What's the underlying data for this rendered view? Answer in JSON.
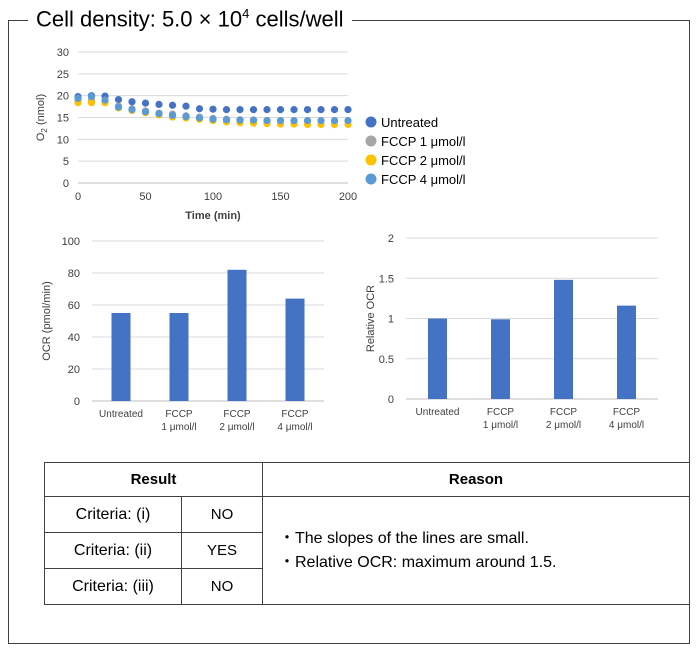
{
  "header": {
    "title_prefix": "Cell density: 5.0",
    "title_times": "×",
    "title_base": "10",
    "title_exp": "4",
    "title_suffix": "cells/well"
  },
  "chart_data": [
    {
      "type": "scatter",
      "xlabel": "Time  (min)",
      "ylabel_main": "O",
      "ylabel_sub": "2",
      "ylabel_unit": " (nmol)",
      "xlim": [
        0,
        200
      ],
      "ylim": [
        0,
        30
      ],
      "xticks": [
        "0",
        "50",
        "100",
        "150",
        "200"
      ],
      "yticks": [
        "0",
        "5",
        "10",
        "15",
        "20",
        "25",
        "30"
      ],
      "x": [
        0,
        10,
        20,
        30,
        40,
        50,
        60,
        70,
        80,
        90,
        100,
        110,
        120,
        130,
        140,
        150,
        160,
        170,
        180,
        190,
        200
      ],
      "series": [
        {
          "name": "Untreated",
          "color": "#4472C4",
          "values": [
            19.8,
            20.0,
            19.9,
            19.1,
            18.6,
            18.3,
            18.0,
            17.8,
            17.6,
            17.0,
            16.9,
            16.8,
            16.8,
            16.8,
            16.8,
            16.8,
            16.8,
            16.8,
            16.8,
            16.8,
            16.8
          ]
        },
        {
          "name": "FCCP 1 μmol/l",
          "color": "#A5A5A5",
          "values": [
            18.8,
            19.0,
            18.8,
            17.6,
            17.0,
            16.5,
            16.0,
            15.8,
            15.4,
            15.1,
            14.8,
            14.6,
            14.5,
            14.4,
            14.3,
            14.3,
            14.2,
            14.2,
            14.2,
            14.2,
            14.2
          ]
        },
        {
          "name": "FCCP 2 μmol/l",
          "color": "#FFC000",
          "values": [
            18.4,
            18.4,
            18.4,
            17.2,
            16.6,
            16.1,
            15.6,
            15.1,
            14.9,
            14.6,
            14.3,
            14.0,
            13.8,
            13.7,
            13.6,
            13.5,
            13.5,
            13.4,
            13.4,
            13.4,
            13.4
          ]
        },
        {
          "name": "FCCP 4 μmol/l",
          "color": "#5B9BD5",
          "values": [
            19.4,
            19.8,
            19.0,
            17.4,
            16.8,
            16.3,
            15.9,
            15.5,
            15.2,
            14.9,
            14.6,
            14.5,
            14.4,
            14.4,
            14.3,
            14.3,
            14.3,
            14.3,
            14.3,
            14.3,
            14.3
          ]
        }
      ]
    },
    {
      "type": "bar",
      "ylabel": "OCR (pmol/min)",
      "ylim": [
        0,
        100
      ],
      "yticks": [
        "0",
        "20",
        "40",
        "60",
        "80",
        "100"
      ],
      "categories": [
        [
          "Untreated"
        ],
        [
          "FCCP",
          "1 μmol/l"
        ],
        [
          "FCCP",
          "2 μmol/l"
        ],
        [
          "FCCP",
          "4 μmol/l"
        ]
      ],
      "values": [
        55,
        55,
        82,
        64
      ],
      "color": "#4472C4"
    },
    {
      "type": "bar",
      "ylabel": "Relative OCR",
      "ylim": [
        0,
        2
      ],
      "yticks": [
        "0",
        "0.5",
        "1",
        "1.5",
        "2"
      ],
      "categories": [
        [
          "Untreated"
        ],
        [
          "FCCP",
          "1 μmol/l"
        ],
        [
          "FCCP",
          "2 μmol/l"
        ],
        [
          "FCCP",
          "4 μmol/l"
        ]
      ],
      "values": [
        1.0,
        0.99,
        1.48,
        1.16
      ],
      "color": "#4472C4"
    }
  ],
  "table": {
    "result_header": "Result",
    "reason_header": "Reason",
    "rows": [
      {
        "criteria": "Criteria: (i)",
        "answer": "NO"
      },
      {
        "criteria": "Criteria: (ii)",
        "answer": "YES"
      },
      {
        "criteria": "Criteria: (iii)",
        "answer": "NO"
      }
    ],
    "reasons": [
      "・The slopes of the lines are small.",
      "・Relative OCR: maximum around 1.5."
    ]
  }
}
